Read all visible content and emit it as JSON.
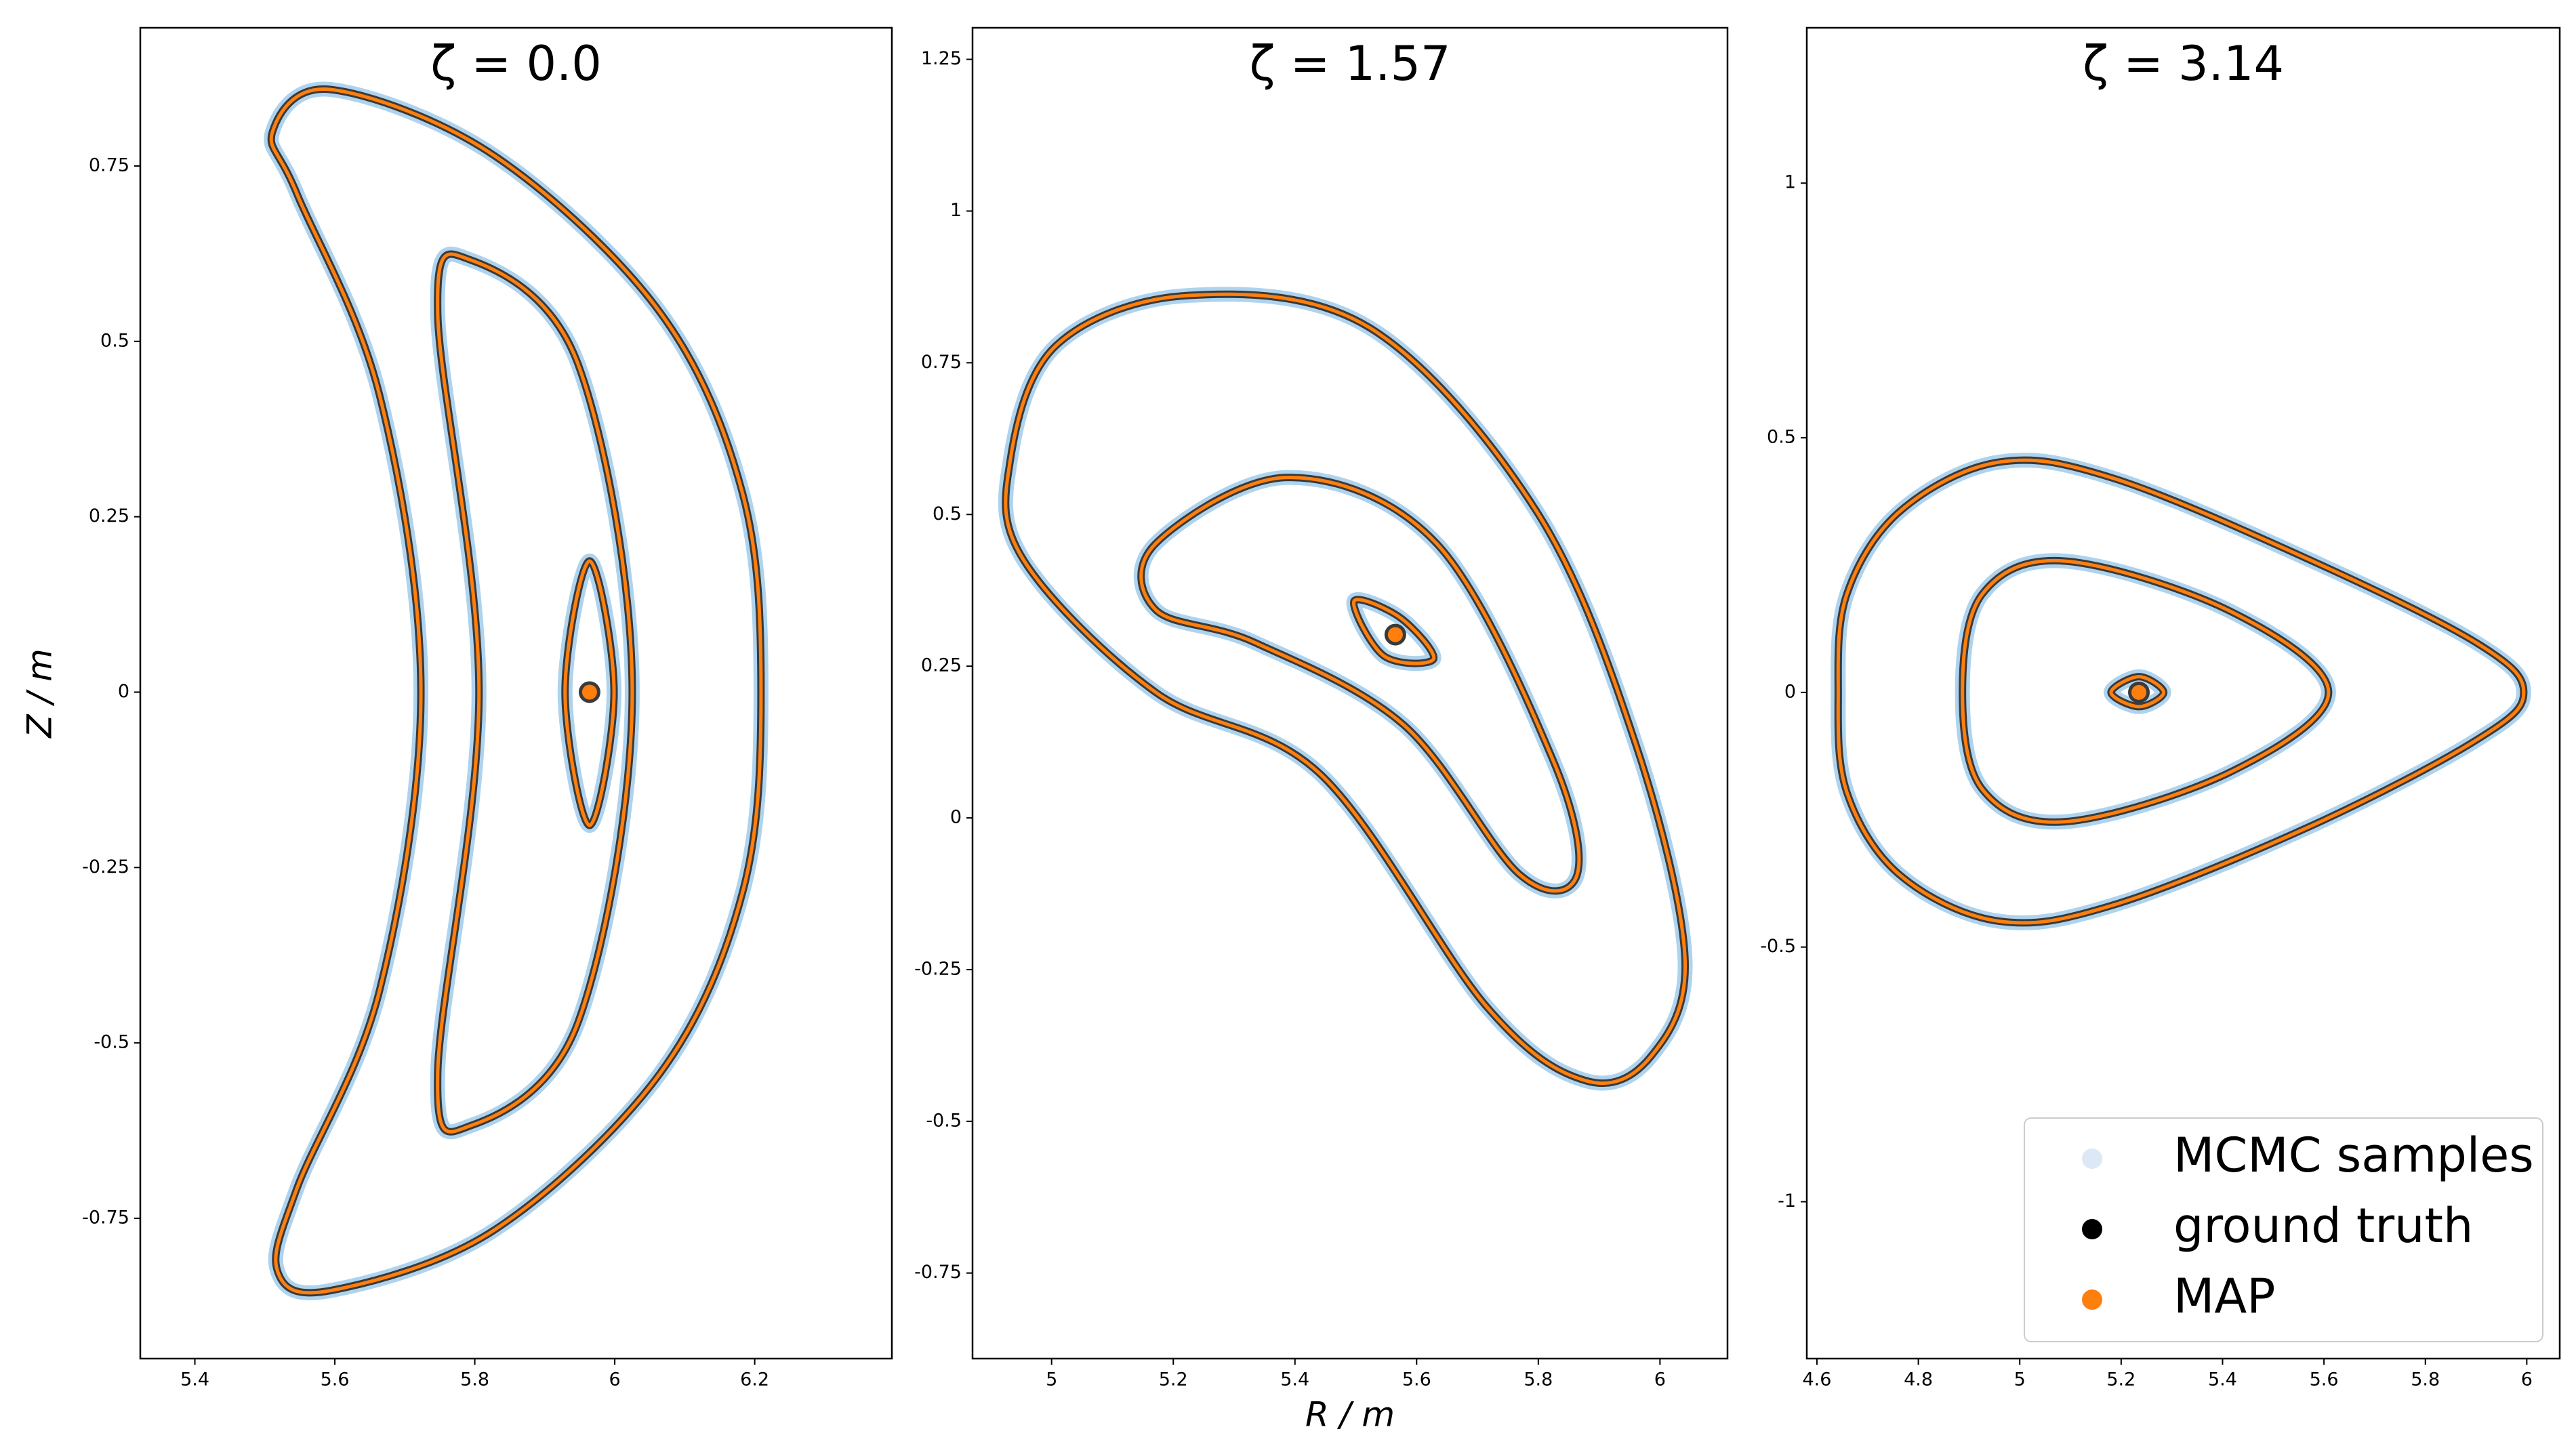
{
  "chart_data": [
    {
      "type": "line",
      "title": "ζ = 0.0",
      "ylabel": "Z / m",
      "xlim": [
        5.322,
        6.396
      ],
      "ylim": [
        -0.95,
        0.947
      ],
      "xticks": [
        5.4,
        5.6,
        5.8,
        6.0,
        6.2
      ],
      "yticks": [
        -0.75,
        -0.5,
        -0.25,
        0.0,
        0.25,
        0.5,
        0.75
      ],
      "colors": {
        "samples": "#aed3ee",
        "truth": "#3a3a3a",
        "map": "#ff7f0e"
      },
      "surfaces": [
        {
          "x": [
            5.594,
            5.829,
            6.065,
            6.183,
            6.209,
            6.183,
            6.065,
            5.829,
            5.594,
            5.518,
            5.546,
            5.664,
            5.723,
            5.664,
            5.546,
            5.511
          ],
          "y": [
            0.859,
            0.764,
            0.541,
            0.282,
            0.0,
            -0.284,
            -0.543,
            -0.766,
            -0.853,
            -0.825,
            -0.707,
            -0.425,
            0.0,
            0.423,
            0.71,
            0.799
          ]
        },
        {
          "x": [
            5.794,
            5.947,
            6.025,
            5.947,
            5.794,
            5.747,
            5.806,
            5.747
          ],
          "y": [
            0.616,
            0.469,
            0.0,
            -0.472,
            -0.618,
            -0.543,
            0.0,
            0.54
          ]
        },
        {
          "x": [
            5.964,
            5.999,
            5.964,
            5.929
          ],
          "y": [
            0.187,
            0.0,
            -0.19,
            0.0
          ]
        }
      ],
      "axis_point": {
        "x": 5.964,
        "y": 0.0
      }
    },
    {
      "type": "line",
      "title": "ζ = 1.57",
      "xlabel": "R / m",
      "xlim": [
        4.87,
        6.111
      ],
      "ylim": [
        -0.891,
        1.302
      ],
      "xticks": [
        5.0,
        5.2,
        5.4,
        5.6,
        5.8,
        6.0
      ],
      "yticks": [
        -0.75,
        -0.5,
        -0.25,
        0.0,
        0.25,
        0.5,
        0.75,
        1.0,
        1.25
      ],
      "colors": {
        "samples": "#aed3ee",
        "truth": "#3a3a3a",
        "map": "#ff7f0e"
      },
      "surfaces": [
        {
          "x": [
            4.932,
            5.008,
            5.226,
            5.524,
            5.796,
            5.959,
            6.041,
            5.986,
            5.878,
            5.715,
            5.443,
            5.171,
            4.954
          ],
          "y": [
            0.589,
            0.779,
            0.861,
            0.807,
            0.507,
            0.125,
            -0.229,
            -0.392,
            -0.433,
            -0.311,
            0.071,
            0.207,
            0.425
          ]
        },
        {
          "x": [
            5.171,
            5.389,
            5.633,
            5.823,
            5.864,
            5.769,
            5.579,
            5.334,
            5.171
          ],
          "y": [
            0.452,
            0.561,
            0.452,
            0.098,
            -0.093,
            -0.093,
            0.153,
            0.289,
            0.343
          ]
        },
        {
          "x": [
            5.497,
            5.573,
            5.628,
            5.546
          ],
          "y": [
            0.357,
            0.33,
            0.262,
            0.267
          ]
        }
      ],
      "axis_point": {
        "x": 5.565,
        "y": 0.302
      }
    },
    {
      "type": "line",
      "title": "ζ = 3.14",
      "xlim": [
        4.58,
        6.065
      ],
      "ylim": [
        -1.308,
        1.305
      ],
      "xticks": [
        4.6,
        4.8,
        5.0,
        5.2,
        5.4,
        5.6,
        5.8,
        6.0
      ],
      "yticks": [
        -1.0,
        -0.5,
        0.0,
        0.5,
        1.0
      ],
      "colors": {
        "samples": "#aed3ee",
        "truth": "#3a3a3a",
        "map": "#ff7f0e"
      },
      "surfaces": [
        {
          "x": [
            4.659,
            4.763,
            4.958,
            5.186,
            5.577,
            5.903,
            5.994,
            5.903,
            5.577,
            5.186,
            4.958,
            4.763,
            4.659,
            4.642
          ],
          "y": [
            0.193,
            0.355,
            0.452,
            0.42,
            0.258,
            0.096,
            0.0,
            -0.092,
            -0.261,
            -0.417,
            -0.449,
            -0.358,
            -0.196,
            0.0
          ]
        },
        {
          "x": [
            4.926,
            5.088,
            5.414,
            5.609,
            5.414,
            5.088,
            4.926,
            4.887
          ],
          "y": [
            0.193,
            0.258,
            0.16,
            0.0,
            -0.157,
            -0.254,
            -0.19,
            0.0
          ]
        },
        {
          "x": [
            5.235,
            5.284,
            5.235,
            5.18
          ],
          "y": [
            0.031,
            0.0,
            -0.028,
            0.0
          ]
        }
      ],
      "axis_point": {
        "x": 5.235,
        "y": 0.0
      },
      "legend": {
        "loc": "lower right",
        "entries": [
          {
            "name": "MCMC samples",
            "color": "#dce8f5"
          },
          {
            "name": "ground truth",
            "color": "#000000"
          },
          {
            "name": "MAP",
            "color": "#ff7f0e"
          }
        ]
      }
    }
  ]
}
